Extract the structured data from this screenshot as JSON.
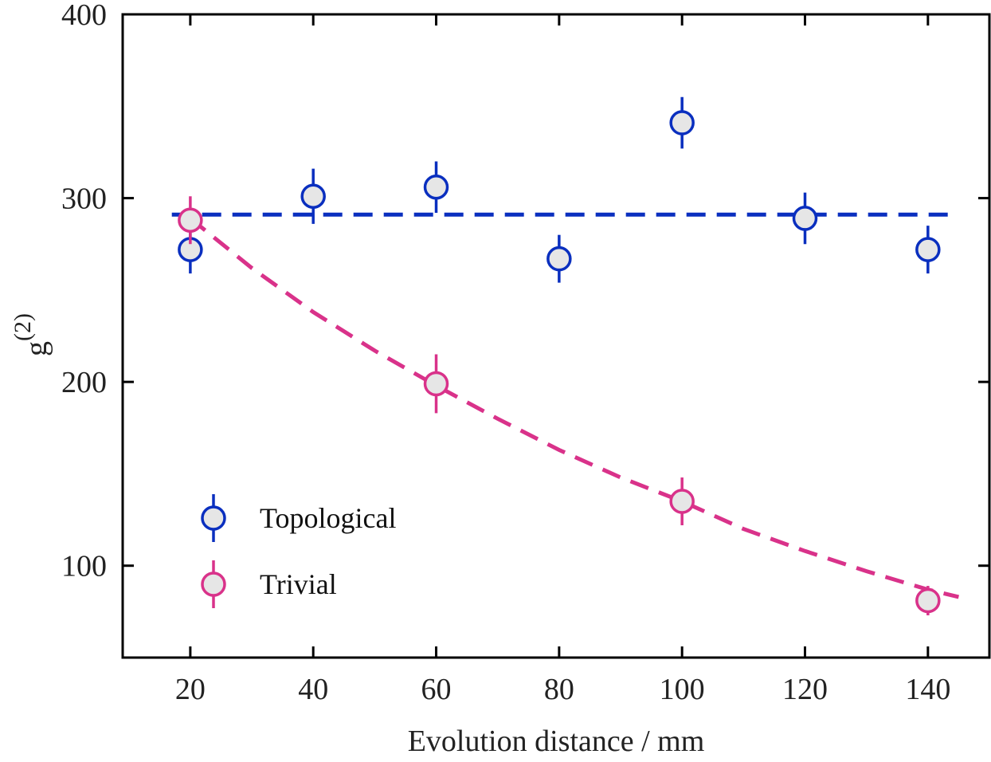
{
  "chart_data": {
    "type": "scatter",
    "title": "",
    "xlabel": "Evolution distance / mm",
    "ylabel_base": "g",
    "ylabel_superscript": "(2)",
    "xlim": [
      9,
      150
    ],
    "ylim": [
      50,
      400
    ],
    "x_ticks": [
      20,
      40,
      60,
      80,
      100,
      120,
      140
    ],
    "y_ticks": [
      100,
      200,
      300,
      400
    ],
    "x_tick_labels": [
      "20",
      "40",
      "60",
      "80",
      "100",
      "120",
      "140"
    ],
    "y_tick_labels": [
      "100",
      "200",
      "300",
      "400"
    ],
    "grid": false,
    "legend_position": "lower-left",
    "marker_fill": "#e6e6e6",
    "series": [
      {
        "name": "Topological",
        "color": "#0a2fbf",
        "x": [
          20,
          40,
          60,
          80,
          100,
          120,
          140
        ],
        "y": [
          272,
          301,
          306,
          267,
          341,
          289,
          272
        ],
        "yerr": [
          13,
          15,
          14,
          13,
          14,
          14,
          13
        ],
        "fit": {
          "style": "dashed",
          "x": [
            17,
            145
          ],
          "y": [
            291,
            291
          ]
        }
      },
      {
        "name": "Trivial",
        "color": "#d9328a",
        "x": [
          20,
          60,
          100,
          140
        ],
        "y": [
          288,
          199,
          135,
          81
        ],
        "yerr": [
          13,
          16,
          13,
          8
        ],
        "fit": {
          "style": "dashed",
          "x": [
            20,
            30,
            40,
            50,
            60,
            70,
            80,
            90,
            100,
            110,
            120,
            130,
            140,
            145
          ],
          "y": [
            289,
            262,
            238,
            217,
            198,
            180,
            163,
            148,
            135,
            120,
            108,
            97,
            87,
            83
          ]
        }
      }
    ]
  }
}
